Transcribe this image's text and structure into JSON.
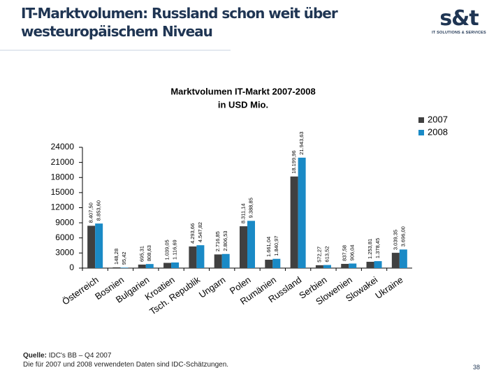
{
  "slide": {
    "title": "IT-Marktvolumen: Russland schon weit über westeuropäischem Niveau",
    "logo": "s&t",
    "logo_tagline": "IT SOLUTIONS & SERVICES",
    "source_label": "Quelle:",
    "source": "IDC's BB – Q4 2007",
    "note": "Die für 2007 und 2008 verwendeten Daten sind IDC-Schätzungen.",
    "page_number": "38"
  },
  "chart_data": {
    "type": "bar",
    "title": "Marktvolumen IT-Markt 2007-2008",
    "subtitle": "in USD Mio.",
    "categories": [
      "Österreich",
      "Bosnien",
      "Bulgarien",
      "Kroatien",
      "Tsch. Republik",
      "Ungarn",
      "Polen",
      "Rumänien",
      "Russland",
      "Serbien",
      "Slowenien",
      "Slowakei",
      "Ukraine"
    ],
    "series": [
      {
        "name": "2007",
        "color": "#404040",
        "values": [
          8407.5,
          148.28,
          695.31,
          1039.05,
          4293.66,
          2716.85,
          8311.14,
          1661.04,
          18199.96,
          572.27,
          837.58,
          1253.81,
          3039.35
        ],
        "value_labels": [
          "8.407,50",
          "148,28",
          "695,31",
          "1.039,05",
          "4.293,66",
          "2.716,85",
          "8.311,14",
          "1.661,04",
          "18.199,96",
          "572,27",
          "837,58",
          "1.253,81",
          "3.039,35"
        ]
      },
      {
        "name": "2008",
        "color": "#1a8ac6",
        "values": [
          8853.6,
          95.42,
          808.63,
          1116.69,
          4547.82,
          2806.53,
          9388.85,
          1840.97,
          21943.63,
          613.52,
          906.04,
          1378.45,
          3696.0
        ],
        "value_labels": [
          "8.853,60",
          "95,42",
          "808,63",
          "1.116,69",
          "4.547,82",
          "2.806,53",
          "9.388,85",
          "1.840,97",
          "21.943,63",
          "613,52",
          "906,04",
          "1.378,45",
          "3.696,00"
        ]
      }
    ],
    "ylim": [
      0,
      24000
    ],
    "yticks": [
      0,
      3000,
      6000,
      9000,
      12000,
      15000,
      18000,
      21000,
      24000
    ],
    "grid": false,
    "legend": "top-right"
  }
}
